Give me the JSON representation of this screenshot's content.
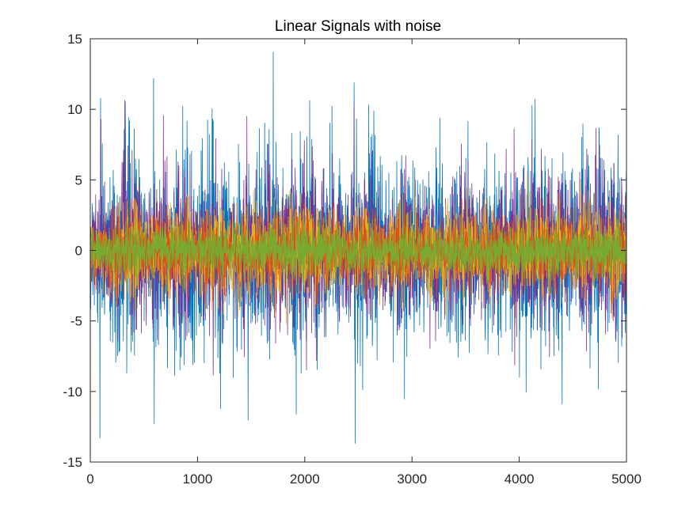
{
  "chart_data": {
    "type": "line",
    "title": "Linear Signals with noise",
    "xlabel": "",
    "ylabel": "",
    "xlim": [
      0,
      5000
    ],
    "ylim": [
      -15,
      15
    ],
    "xticks": [
      0,
      1000,
      2000,
      3000,
      4000,
      5000
    ],
    "xtick_labels": [
      "0",
      "1000",
      "2000",
      "3000",
      "4000",
      "5000"
    ],
    "yticks": [
      15,
      10,
      5,
      0,
      -5,
      -10,
      -15
    ],
    "ytick_labels": [
      "15",
      "10",
      "5",
      "0",
      "-5",
      "-10",
      "-15"
    ],
    "grid": false,
    "legend": "none",
    "n_samples": 5000,
    "series": [
      {
        "color": "#0072BD",
        "noise_std": 3.2,
        "peaks": [
          [
            90,
            -13.3
          ],
          [
            95,
            10.8
          ],
          [
            590,
            12.2
          ],
          [
            595,
            -12.3
          ],
          [
            2460,
            11.9
          ],
          [
            2470,
            -13.7
          ],
          [
            4120,
            10.3
          ],
          [
            4400,
            -10.9
          ]
        ]
      },
      {
        "color": "#7E2F8E",
        "noise_std": 2.4,
        "peaks": [
          [
            100,
            9.3
          ],
          [
            2460,
            10.2
          ]
        ]
      },
      {
        "color": "#EDB120",
        "noise_std": 1.5,
        "peaks": []
      },
      {
        "color": "#D95319",
        "noise_std": 1.2,
        "peaks": []
      },
      {
        "color": "#77AC30",
        "noise_std": 0.85,
        "peaks": []
      }
    ]
  }
}
